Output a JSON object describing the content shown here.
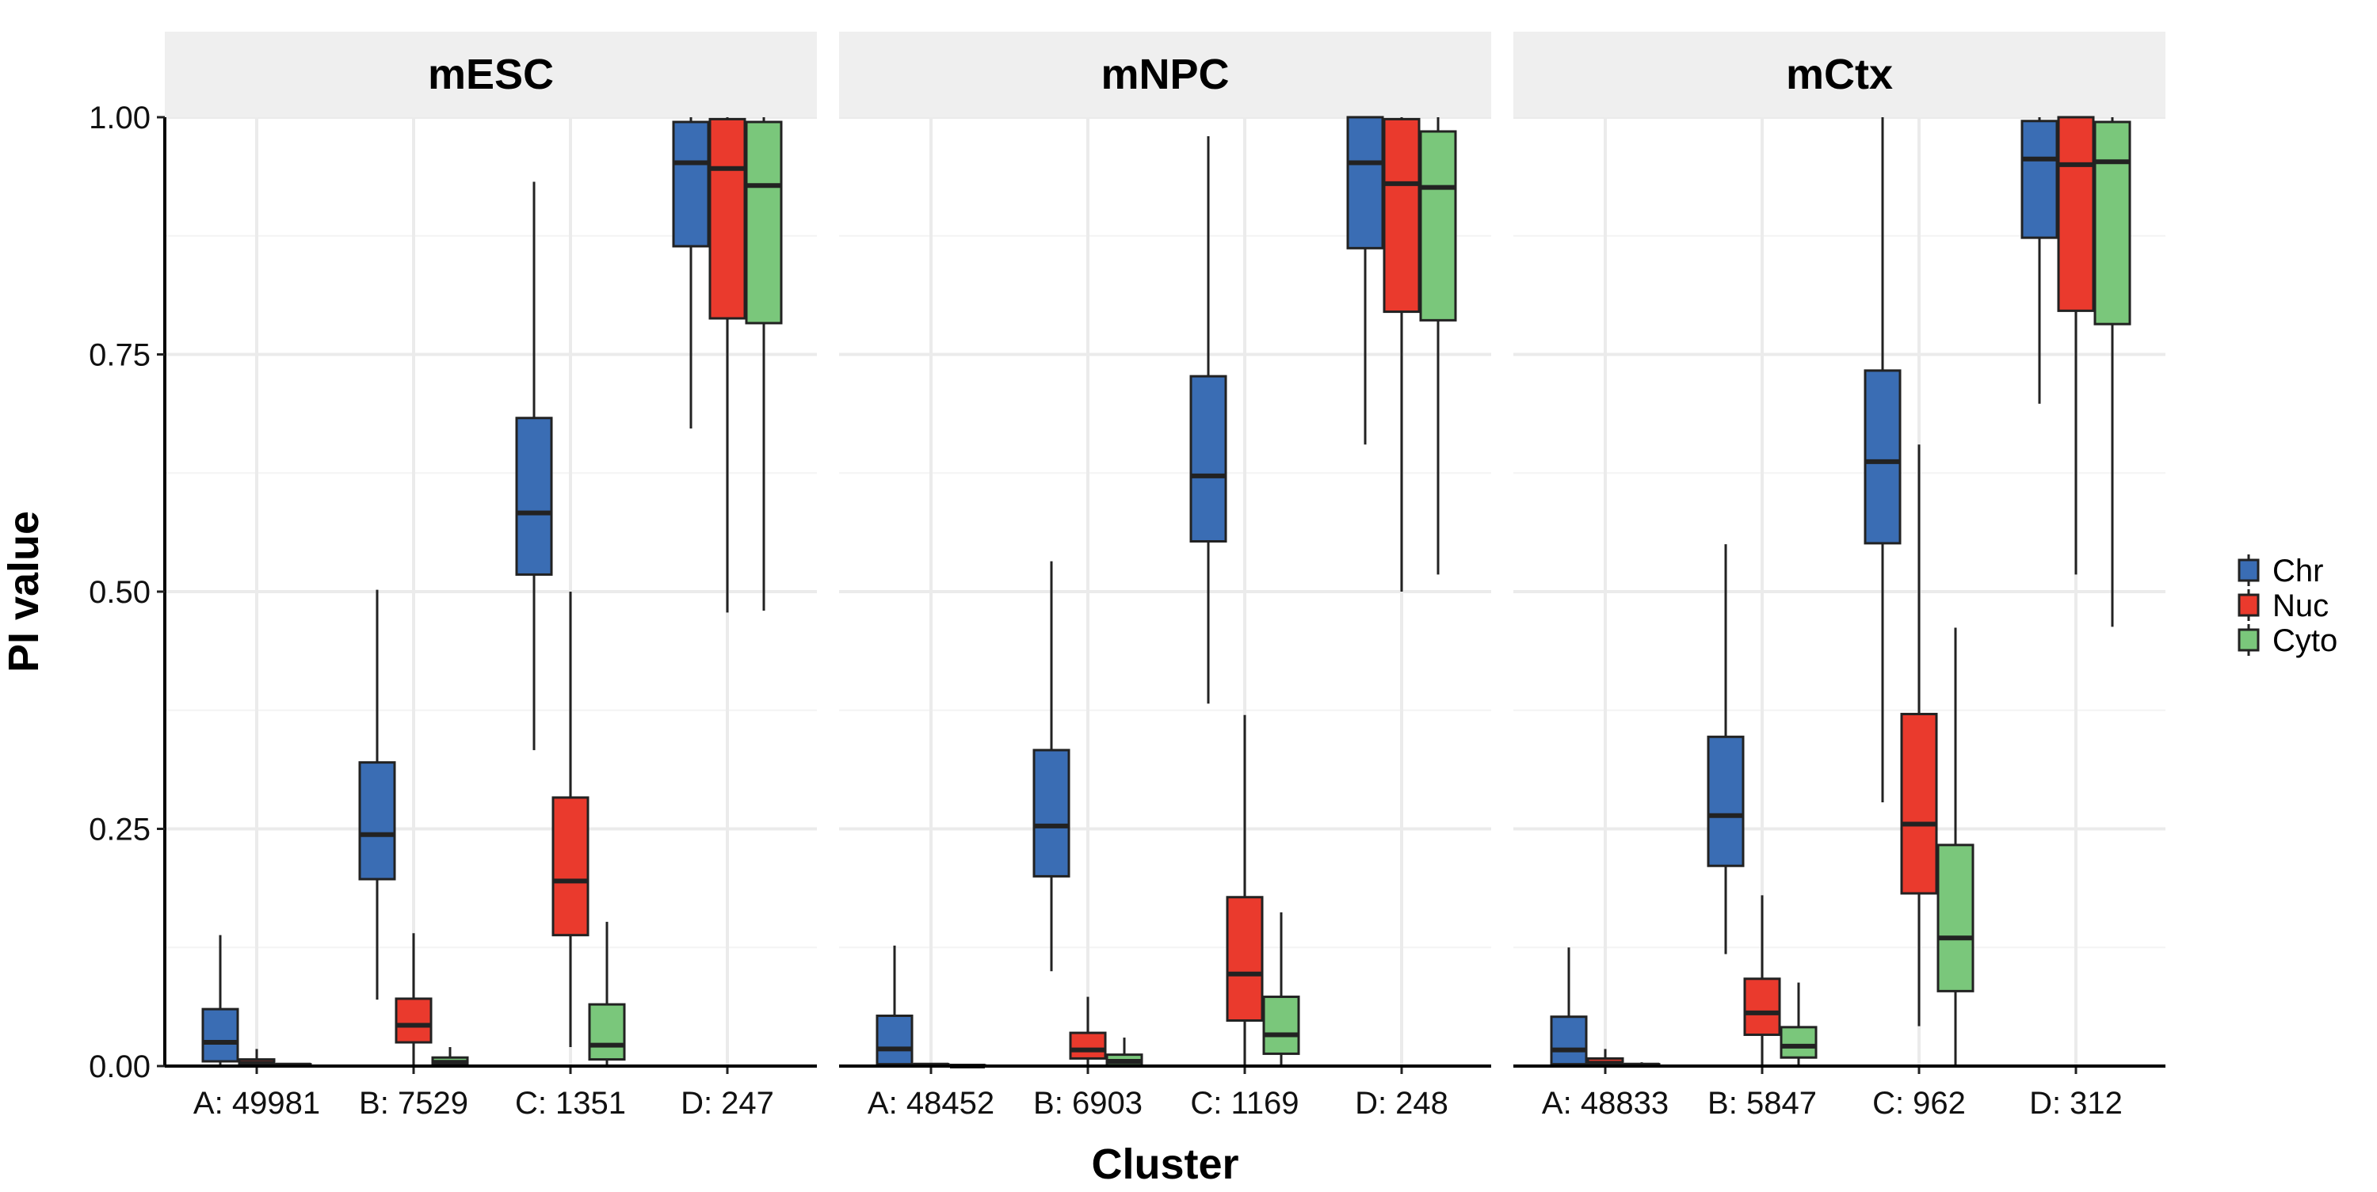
{
  "chart_data": {
    "type": "box",
    "ylabel": "PI value",
    "xlabel": "Cluster",
    "ylim": [
      0,
      1
    ],
    "y_ticks": [
      "0.00",
      "0.25",
      "0.50",
      "0.75",
      "1.00"
    ],
    "grid": true,
    "legend_position": "right",
    "legend": [
      {
        "name": "Chr",
        "color": "#3a6db4"
      },
      {
        "name": "Nuc",
        "color": "#ea3a2d"
      },
      {
        "name": "Cyto",
        "color": "#7ac77b"
      }
    ],
    "panels": [
      {
        "title": "mESC",
        "categories": [
          "A: 49981",
          "B: 7529",
          "C: 1351",
          "D: 247"
        ],
        "boxes": [
          [
            {
              "low": 0,
              "q1": 0.005,
              "median": 0.025,
              "q3": 0.06,
              "high": 0.138
            },
            {
              "low": 0,
              "q1": 0,
              "median": 0.003,
              "q3": 0.007,
              "high": 0.018
            },
            {
              "low": 0,
              "q1": 0,
              "median": 0.001,
              "q3": 0.002,
              "high": 0.003
            }
          ],
          [
            {
              "low": 0.07,
              "q1": 0.197,
              "median": 0.244,
              "q3": 0.32,
              "high": 0.502
            },
            {
              "low": 0,
              "q1": 0.025,
              "median": 0.043,
              "q3": 0.071,
              "high": 0.14
            },
            {
              "low": 0,
              "q1": 0.001,
              "median": 0.004,
              "q3": 0.009,
              "high": 0.02
            }
          ],
          [
            {
              "low": 0.333,
              "q1": 0.518,
              "median": 0.583,
              "q3": 0.683,
              "high": 0.932
            },
            {
              "low": 0.02,
              "q1": 0.138,
              "median": 0.195,
              "q3": 0.283,
              "high": 0.5
            },
            {
              "low": 0,
              "q1": 0.007,
              "median": 0.022,
              "q3": 0.065,
              "high": 0.152
            }
          ],
          [
            {
              "low": 0.672,
              "q1": 0.864,
              "median": 0.952,
              "q3": 0.995,
              "high": 1.0
            },
            {
              "low": 0.478,
              "q1": 0.788,
              "median": 0.946,
              "q3": 0.998,
              "high": 1.0
            },
            {
              "low": 0.48,
              "q1": 0.783,
              "median": 0.928,
              "q3": 0.995,
              "high": 1.0
            }
          ]
        ]
      },
      {
        "title": "mNPC",
        "categories": [
          "A: 48452",
          "B: 6903",
          "C: 1169",
          "D: 248"
        ],
        "boxes": [
          [
            {
              "low": 0,
              "q1": 0.002,
              "median": 0.018,
              "q3": 0.053,
              "high": 0.127
            },
            {
              "low": 0,
              "q1": 0,
              "median": 0.001,
              "q3": 0.002,
              "high": 0.003
            },
            {
              "low": 0,
              "q1": 0,
              "median": 0.0,
              "q3": 0.001,
              "high": 0.002
            }
          ],
          [
            {
              "low": 0.1,
              "q1": 0.2,
              "median": 0.253,
              "q3": 0.333,
              "high": 0.532
            },
            {
              "low": 0,
              "q1": 0.008,
              "median": 0.017,
              "q3": 0.035,
              "high": 0.073
            },
            {
              "low": 0,
              "q1": 0.001,
              "median": 0.005,
              "q3": 0.012,
              "high": 0.03
            }
          ],
          [
            {
              "low": 0.382,
              "q1": 0.553,
              "median": 0.622,
              "q3": 0.727,
              "high": 0.98
            },
            {
              "low": 0,
              "q1": 0.048,
              "median": 0.097,
              "q3": 0.178,
              "high": 0.37
            },
            {
              "low": 0,
              "q1": 0.013,
              "median": 0.033,
              "q3": 0.073,
              "high": 0.162
            }
          ],
          [
            {
              "low": 0.655,
              "q1": 0.862,
              "median": 0.952,
              "q3": 1.0,
              "high": 1.0
            },
            {
              "low": 0.5,
              "q1": 0.795,
              "median": 0.93,
              "q3": 0.998,
              "high": 1.0
            },
            {
              "low": 0.518,
              "q1": 0.786,
              "median": 0.926,
              "q3": 0.985,
              "high": 1.0
            }
          ]
        ]
      },
      {
        "title": "mCtx",
        "categories": [
          "A: 48833",
          "B: 5847",
          "C: 962",
          "D: 312"
        ],
        "boxes": [
          [
            {
              "low": 0,
              "q1": 0.002,
              "median": 0.017,
              "q3": 0.052,
              "high": 0.125
            },
            {
              "low": 0,
              "q1": 0,
              "median": 0.003,
              "q3": 0.008,
              "high": 0.018
            },
            {
              "low": 0,
              "q1": 0,
              "median": 0.001,
              "q3": 0.002,
              "high": 0.004
            }
          ],
          [
            {
              "low": 0.118,
              "q1": 0.211,
              "median": 0.264,
              "q3": 0.347,
              "high": 0.55
            },
            {
              "low": 0,
              "q1": 0.033,
              "median": 0.056,
              "q3": 0.092,
              "high": 0.18
            },
            {
              "low": 0,
              "q1": 0.009,
              "median": 0.021,
              "q3": 0.041,
              "high": 0.088
            }
          ],
          [
            {
              "low": 0.278,
              "q1": 0.551,
              "median": 0.637,
              "q3": 0.733,
              "high": 1.0
            },
            {
              "low": 0.042,
              "q1": 0.182,
              "median": 0.255,
              "q3": 0.371,
              "high": 0.655
            },
            {
              "low": 0,
              "q1": 0.079,
              "median": 0.135,
              "q3": 0.233,
              "high": 0.462
            }
          ],
          [
            {
              "low": 0.698,
              "q1": 0.873,
              "median": 0.956,
              "q3": 0.996,
              "high": 1.0
            },
            {
              "low": 0.518,
              "q1": 0.796,
              "median": 0.95,
              "q3": 1.0,
              "high": 1.0
            },
            {
              "low": 0.463,
              "q1": 0.782,
              "median": 0.953,
              "q3": 0.995,
              "high": 1.0
            }
          ]
        ]
      }
    ]
  }
}
